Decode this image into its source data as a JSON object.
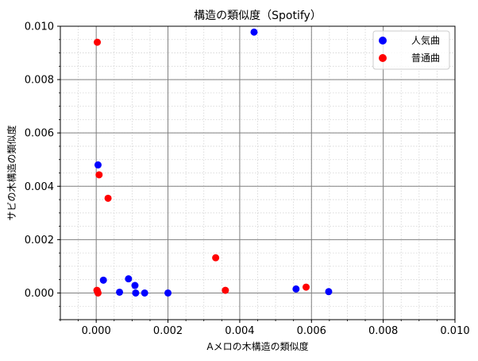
{
  "chart_data": {
    "type": "scatter",
    "title": "構造の類似度（Spotify）",
    "xlabel": "Aメロの木構造の類似度",
    "ylabel": "サビの木構造の類似度",
    "xlim": [
      -0.001,
      0.01
    ],
    "ylim": [
      -0.001,
      0.01
    ],
    "xticks": [
      0.0,
      0.002,
      0.004,
      0.006,
      0.008,
      0.01
    ],
    "yticks": [
      0.0,
      0.002,
      0.004,
      0.006,
      0.008,
      0.01
    ],
    "xtick_labels": [
      "0.000",
      "0.002",
      "0.004",
      "0.006",
      "0.008",
      "0.010"
    ],
    "ytick_labels": [
      "0.000",
      "0.002",
      "0.004",
      "0.006",
      "0.008",
      "0.010"
    ],
    "grid": true,
    "minor_grid": true,
    "legend_position": "top-right",
    "series": [
      {
        "name": "人気曲",
        "color": "#0000ff",
        "points": [
          {
            "x": 0.0044,
            "y": 0.00978
          },
          {
            "x": 5e-05,
            "y": 0.0048
          },
          {
            "x": 0.0002,
            "y": 0.00048
          },
          {
            "x": 0.0009,
            "y": 0.00053
          },
          {
            "x": 0.00108,
            "y": 0.00028
          },
          {
            "x": 0.00065,
            "y": 3e-05
          },
          {
            "x": 0.0011,
            "y": 0.0
          },
          {
            "x": 0.00135,
            "y": 0.0
          },
          {
            "x": 0.002,
            "y": 0.0
          },
          {
            "x": 0.00557,
            "y": 0.00015
          },
          {
            "x": 0.00648,
            "y": 5e-05
          },
          {
            "x": 3e-05,
            "y": 8e-05
          }
        ]
      },
      {
        "name": "普通曲",
        "color": "#ff0000",
        "points": [
          {
            "x": 3e-05,
            "y": 0.0094
          },
          {
            "x": 8e-05,
            "y": 0.00443
          },
          {
            "x": 0.00033,
            "y": 0.00355
          },
          {
            "x": 0.00333,
            "y": 0.00132
          },
          {
            "x": 0.0036,
            "y": 0.0001
          },
          {
            "x": 0.00585,
            "y": 0.00022
          },
          {
            "x": 2e-05,
            "y": 0.0001
          },
          {
            "x": 5e-05,
            "y": 0.0
          }
        ]
      }
    ]
  }
}
